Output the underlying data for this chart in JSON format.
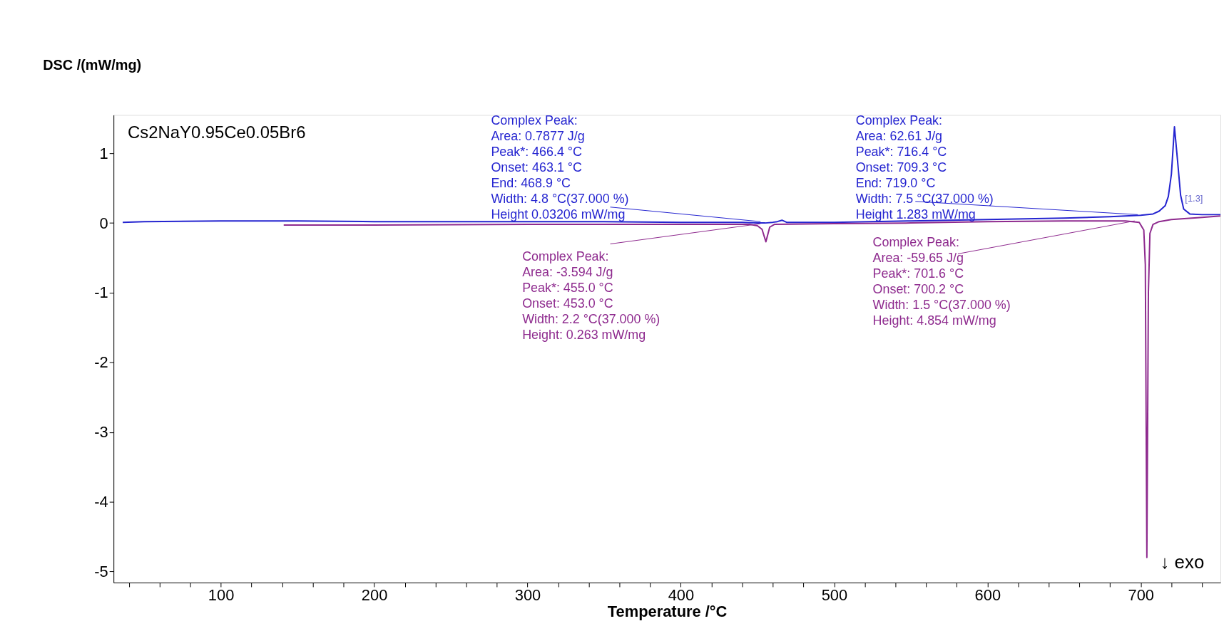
{
  "chart_data": {
    "type": "line",
    "title": "Cs2NaY0.95Ce0.05Br6",
    "xlabel": "Temperature /°C",
    "ylabel": "DSC /(mW/mg)",
    "xlim": [
      30,
      752
    ],
    "ylim": [
      -5.16,
      1.55
    ],
    "xticks": [
      {
        "value": 40,
        "label": null
      },
      {
        "value": 60,
        "label": null
      },
      {
        "value": 80,
        "label": null
      },
      100,
      {
        "value": 120,
        "label": null
      },
      {
        "value": 140,
        "label": null
      },
      {
        "value": 160,
        "label": null
      },
      {
        "value": 180,
        "label": null
      },
      200,
      {
        "value": 220,
        "label": null
      },
      {
        "value": 240,
        "label": null
      },
      {
        "value": 260,
        "label": null
      },
      {
        "value": 280,
        "label": null
      },
      300,
      {
        "value": 320,
        "label": null
      },
      {
        "value": 340,
        "label": null
      },
      {
        "value": 360,
        "label": null
      },
      {
        "value": 380,
        "label": null
      },
      400,
      {
        "value": 420,
        "label": null
      },
      {
        "value": 440,
        "label": null
      },
      {
        "value": 460,
        "label": null
      },
      {
        "value": 480,
        "label": null
      },
      500,
      {
        "value": 520,
        "label": null
      },
      {
        "value": 540,
        "label": null
      },
      {
        "value": 560,
        "label": null
      },
      {
        "value": 580,
        "label": null
      },
      600,
      {
        "value": 620,
        "label": null
      },
      {
        "value": 640,
        "label": null
      },
      {
        "value": 660,
        "label": null
      },
      {
        "value": 680,
        "label": null
      },
      700,
      {
        "value": 720,
        "label": null
      },
      {
        "value": 740,
        "label": null
      }
    ],
    "yticks": [
      -5,
      -4,
      -3,
      -2,
      -1,
      0,
      1
    ],
    "grid": false,
    "marker": "none",
    "line_style": "solid",
    "series": [
      {
        "color": "#2424d0",
        "x": [
          36,
          50,
          100,
          150,
          200,
          250,
          300,
          350,
          400,
          440,
          450,
          455,
          460,
          463,
          466,
          469,
          475,
          500,
          550,
          600,
          650,
          680,
          700,
          708,
          712,
          716,
          718,
          720,
          722,
          724,
          726,
          728,
          732,
          740,
          752
        ],
        "values": [
          0.01,
          0.02,
          0.03,
          0.03,
          0.02,
          0.02,
          0.02,
          0.02,
          0.01,
          0.01,
          0.0,
          0.0,
          0.01,
          0.02,
          0.04,
          0.01,
          0.01,
          0.01,
          0.03,
          0.05,
          0.07,
          0.09,
          0.11,
          0.13,
          0.17,
          0.25,
          0.38,
          0.7,
          1.38,
          0.9,
          0.4,
          0.2,
          0.13,
          0.12,
          0.12
        ]
      },
      {
        "color": "#8e2a8e",
        "x": [
          141,
          200,
          300,
          400,
          445,
          450,
          453,
          455.5,
          458,
          461,
          500,
          550,
          600,
          650,
          690,
          699,
          702,
          703,
          704,
          705,
          706,
          708,
          712,
          720,
          740,
          752
        ],
        "values": [
          -0.03,
          -0.03,
          -0.02,
          -0.02,
          -0.02,
          -0.04,
          -0.09,
          -0.27,
          -0.06,
          -0.02,
          -0.01,
          0.0,
          0.02,
          0.03,
          0.03,
          0.01,
          -0.1,
          -0.6,
          -4.8,
          -1.0,
          -0.15,
          -0.02,
          0.02,
          0.05,
          0.08,
          0.1
        ]
      }
    ],
    "annotations": [
      {
        "text": "Complex Peak:\nArea:      0.7877 J/g\nPeak*:  466.4 °C\nOnset:  463.1 °C\nEnd:     468.9 °C\nWidth:      4.8 °C(37.000 %)\nHeight    0.03206 mW/mg",
        "x": 452,
        "y": 0.02
      },
      {
        "text": "Complex Peak:\nArea:     62.61 J/g\nPeak*:  716.4 °C\nOnset:  709.3 °C\nEnd:     719.0 °C\nWidth:      7.5 °C(37.000 %)\nHeight    1.283 mW/mg",
        "x": 698,
        "y": 0.12
      },
      {
        "text": "Complex Peak:\nArea:       -3.594 J/g\nPeak*:  455.0 °C\nOnset:  453.0 °C\nWidth:      2.2 °C(37.000 %)\nHeight:    0.263 mW/mg",
        "x": 452,
        "y": -0.01
      },
      {
        "text": "Complex Peak:\nArea:     -59.65 J/g\nPeak*:  701.6 °C\nOnset:  700.2 °C\nWidth:      1.5 °C(37.000 %)\nHeight:    4.854 mW/mg",
        "x": 696,
        "y": 0.03
      },
      "↓ exo",
      "[1.3]"
    ]
  }
}
